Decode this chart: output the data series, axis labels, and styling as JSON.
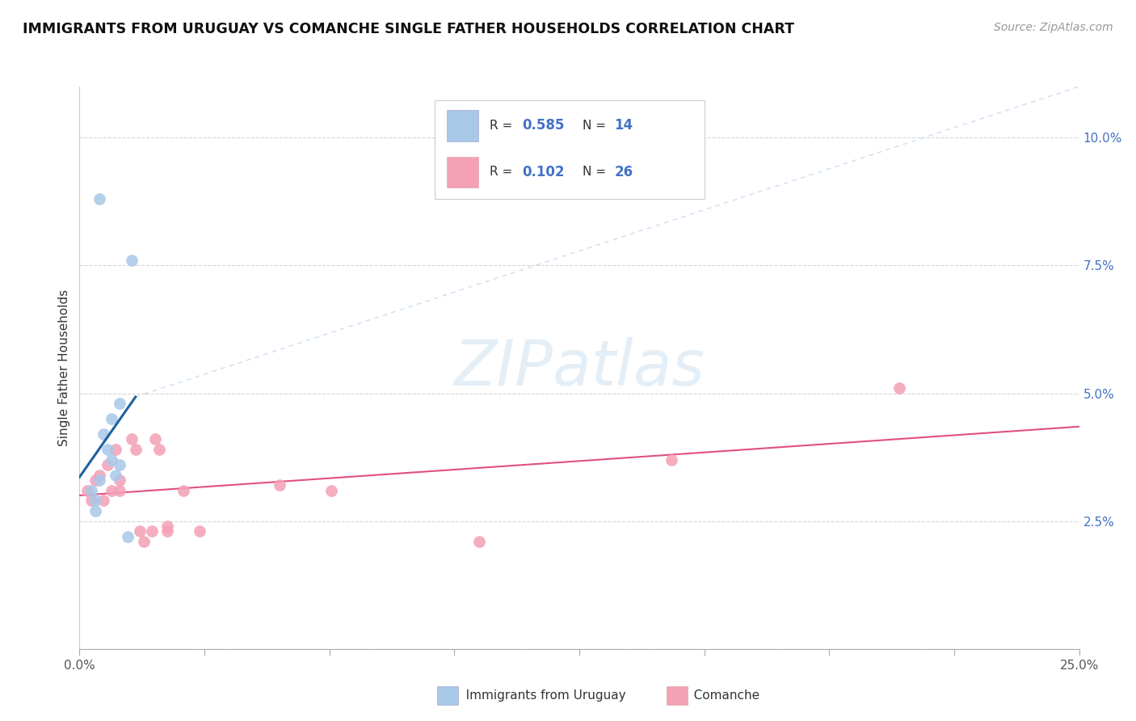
{
  "title": "IMMIGRANTS FROM URUGUAY VS COMANCHE SINGLE FATHER HOUSEHOLDS CORRELATION CHART",
  "source": "Source: ZipAtlas.com",
  "ylabel": "Single Father Households",
  "xlim": [
    0.0,
    0.25
  ],
  "ylim": [
    0.0,
    0.11
  ],
  "color_blue": "#a8c8e8",
  "color_pink": "#f4a0b5",
  "line_blue": "#2060a0",
  "line_pink": "#e05080",
  "watermark_color": "#c8dff0",
  "uruguay_points": [
    [
      0.005,
      0.088
    ],
    [
      0.013,
      0.076
    ],
    [
      0.01,
      0.048
    ],
    [
      0.008,
      0.045
    ],
    [
      0.006,
      0.042
    ],
    [
      0.007,
      0.039
    ],
    [
      0.008,
      0.037
    ],
    [
      0.01,
      0.036
    ],
    [
      0.009,
      0.034
    ],
    [
      0.005,
      0.033
    ],
    [
      0.003,
      0.031
    ],
    [
      0.004,
      0.029
    ],
    [
      0.004,
      0.027
    ],
    [
      0.012,
      0.022
    ]
  ],
  "comanche_points": [
    [
      0.002,
      0.031
    ],
    [
      0.003,
      0.029
    ],
    [
      0.004,
      0.033
    ],
    [
      0.005,
      0.034
    ],
    [
      0.006,
      0.029
    ],
    [
      0.007,
      0.036
    ],
    [
      0.008,
      0.031
    ],
    [
      0.009,
      0.039
    ],
    [
      0.01,
      0.031
    ],
    [
      0.01,
      0.033
    ],
    [
      0.013,
      0.041
    ],
    [
      0.014,
      0.039
    ],
    [
      0.015,
      0.023
    ],
    [
      0.016,
      0.021
    ],
    [
      0.018,
      0.023
    ],
    [
      0.019,
      0.041
    ],
    [
      0.02,
      0.039
    ],
    [
      0.022,
      0.023
    ],
    [
      0.022,
      0.024
    ],
    [
      0.026,
      0.031
    ],
    [
      0.03,
      0.023
    ],
    [
      0.05,
      0.032
    ],
    [
      0.063,
      0.031
    ],
    [
      0.1,
      0.021
    ],
    [
      0.148,
      0.037
    ],
    [
      0.205,
      0.051
    ]
  ],
  "xtick_positions": [
    0.0,
    0.03125,
    0.0625,
    0.09375,
    0.125,
    0.15625,
    0.1875,
    0.21875,
    0.25
  ],
  "ytick_positions": [
    0.0,
    0.025,
    0.05,
    0.075,
    0.1
  ],
  "yticklabels": [
    "",
    "2.5%",
    "5.0%",
    "7.5%",
    "10.0%"
  ]
}
